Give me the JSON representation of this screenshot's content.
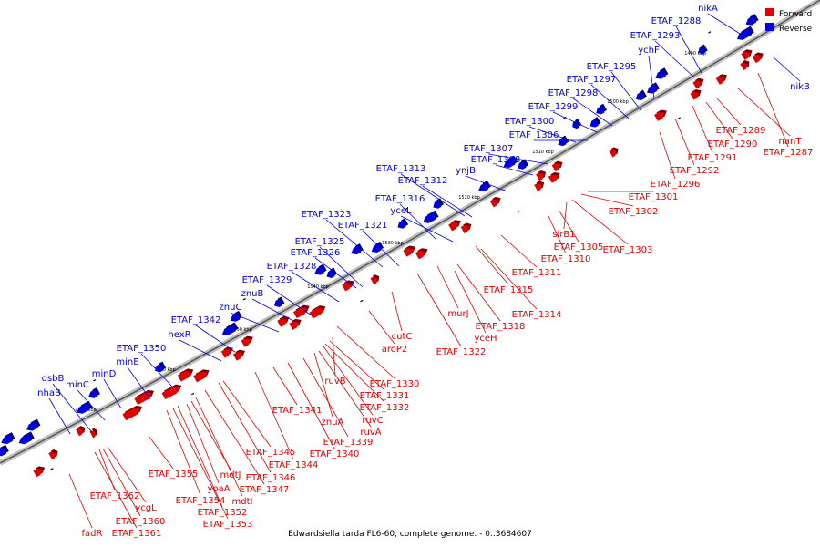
{
  "caption": "Edwardsiella tarda FL6-60, complete genome. - 0..3684607",
  "legend": {
    "forward_label": "Forward",
    "reverse_label": "Reverse",
    "forward_color": "#e00000",
    "reverse_color": "#0000e0"
  },
  "ticks": [
    "1490 kbp",
    "1500 kbp",
    "1510 kbp",
    "1520 kbp",
    "1530 kbp",
    "1540 kbp",
    "1550 kbp",
    "1560 kbp",
    "1570 kbp"
  ],
  "reverse_labels": [
    "nikA",
    "ETAF_1288",
    "ETAF_1293",
    "ychF",
    "nikB",
    "ETAF_1295",
    "ETAF_1297",
    "ETAF_1298",
    "ETAF_1299",
    "ETAF_1300",
    "ETAF_1306",
    "ETAF_1307",
    "ETAF_1308",
    "ynjB",
    "ETAF_1313",
    "ETAF_1312",
    "ETAF_1316",
    "yceL",
    "ETAF_1323",
    "ETAF_1321",
    "ETAF_1325",
    "ETAF_1326",
    "ETAF_1328",
    "ETAF_1329",
    "znuB",
    "znuC",
    "ETAF_1342",
    "hexR",
    "ETAF_1350",
    "minE",
    "minD",
    "dsbB",
    "minC",
    "nhaB"
  ],
  "forward_labels": [
    "ETAF_1289",
    "nanT",
    "ETAF_1290",
    "ETAF_1287",
    "ETAF_1291",
    "ETAF_1292",
    "ETAF_1296",
    "ETAF_1301",
    "ETAF_1302",
    "sirB1",
    "ETAF_1305",
    "ETAF_1303",
    "ETAF_1310",
    "ETAF_1311",
    "ETAF_1315",
    "ETAF_1314",
    "murJ",
    "ETAF_1318",
    "yceH",
    "ETAF_1322",
    "cutC",
    "aroP2",
    "ETAF_1330",
    "ruvB",
    "ETAF_1331",
    "ETAF_1332",
    "ETAF_1341",
    "ruvC",
    "znuA",
    "ruvA",
    "ETAF_1339",
    "ETAF_1340",
    "ETAF_1345",
    "ETAF_1344",
    "ETAF_1346",
    "ETAF_1347",
    "mdtJ",
    "yoaA",
    "ETAF_1355",
    "mdtI",
    "ETAF_1352",
    "ETAF_1354",
    "ETAF_1353",
    "ETAF_1362",
    "ycgL",
    "ETAF_1360",
    "ETAF_1361",
    "fadR"
  ]
}
